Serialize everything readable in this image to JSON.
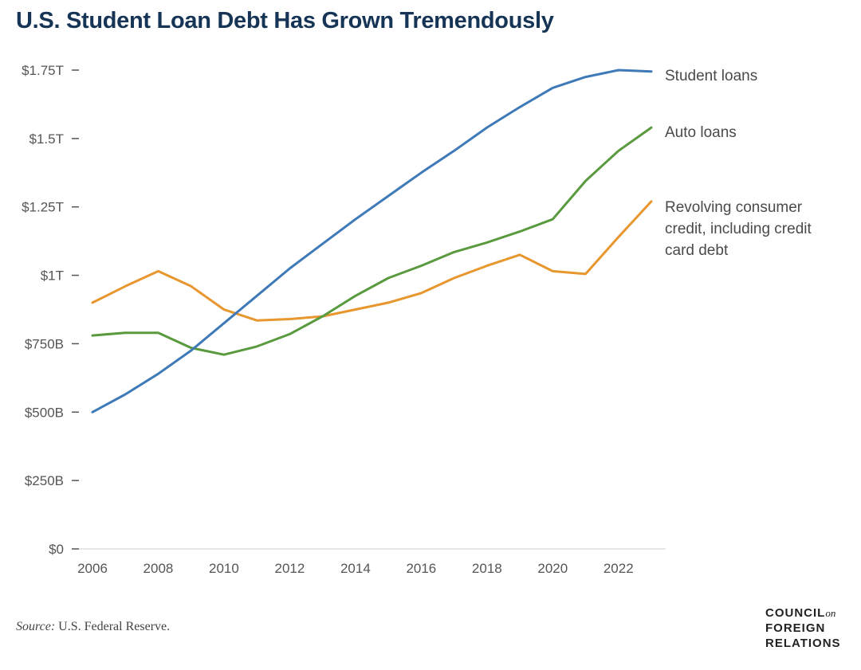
{
  "title": "U.S. Student Loan Debt Has Grown Tremendously",
  "source_label": "Source:",
  "source_text": "U.S. Federal Reserve.",
  "logo": {
    "line1": "COUNCIL",
    "on": "on",
    "line2": "FOREIGN",
    "line3": "RELATIONS"
  },
  "chart_data": {
    "type": "line",
    "title": "U.S. Student Loan Debt Has Grown Tremendously",
    "xlabel": "",
    "ylabel": "",
    "ylim": [
      0,
      1.75
    ],
    "xlim": [
      2006,
      2023
    ],
    "x": [
      2006,
      2007,
      2008,
      2009,
      2010,
      2011,
      2012,
      2013,
      2014,
      2015,
      2016,
      2017,
      2018,
      2019,
      2020,
      2021,
      2022,
      2023
    ],
    "x_tick_labels": [
      "2006",
      "2008",
      "2010",
      "2012",
      "2014",
      "2016",
      "2018",
      "2020",
      "2022"
    ],
    "y_ticks": [
      0,
      0.25,
      0.5,
      0.75,
      1,
      1.25,
      1.5,
      1.75
    ],
    "y_tick_labels": [
      "$0",
      "$250B",
      "$500B",
      "$750B",
      "$1T",
      "$1.25T",
      "$1.5T",
      "$1.75T"
    ],
    "grid": false,
    "legend": "inline labels at right end of lines",
    "series": [
      {
        "name": "Student loans",
        "color": "#3f7ab8",
        "values": [
          0.5,
          0.565,
          0.64,
          0.725,
          0.825,
          0.925,
          1.025,
          1.115,
          1.205,
          1.29,
          1.375,
          1.455,
          1.54,
          1.615,
          1.685,
          1.725,
          1.75,
          1.745
        ]
      },
      {
        "name": "Auto loans",
        "color": "#5a9a3e",
        "values": [
          0.78,
          0.79,
          0.79,
          0.735,
          0.71,
          0.74,
          0.785,
          0.85,
          0.925,
          0.99,
          1.035,
          1.085,
          1.12,
          1.16,
          1.205,
          1.345,
          1.455,
          1.54
        ]
      },
      {
        "name": "Revolving consumer credit, including credit card debt",
        "label_lines": [
          "Revolving consumer",
          "credit, including credit",
          "card debt"
        ],
        "color": "#e8962e",
        "values": [
          0.9,
          0.96,
          1.015,
          0.96,
          0.875,
          0.835,
          0.84,
          0.85,
          0.875,
          0.9,
          0.935,
          0.99,
          1.035,
          1.075,
          1.015,
          1.005,
          1.14,
          1.27
        ]
      }
    ]
  }
}
